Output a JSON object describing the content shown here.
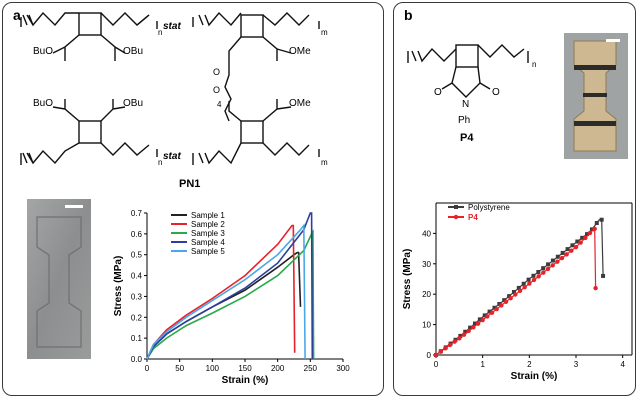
{
  "panels": {
    "a": {
      "letter": "a",
      "polymer_label": "PN1"
    },
    "b": {
      "letter": "b",
      "polymer_label": "P4"
    }
  },
  "chem": {
    "stat": "stat",
    "n": "n",
    "m": "m",
    "four": "4",
    "BuO": "BuO",
    "OBu": "OBu",
    "OMe": "OMe",
    "O": "O",
    "N": "N",
    "Ph": "Ph"
  },
  "colors": {
    "sample1": "#222222",
    "sample2": "#e8222a",
    "sample3": "#2aa84a",
    "sample4": "#2c3e9e",
    "sample5": "#4aa8e8",
    "sample4_mix": "#8a4fb0",
    "polystyrene": "#3c3c3c",
    "p4": "#e8222a"
  },
  "chart_data": [
    {
      "type": "line",
      "xlabel": "Strain (%)",
      "ylabel": "Stress (MPa)",
      "xlim": [
        0,
        300
      ],
      "ylim": [
        0,
        0.7
      ],
      "xticks": [
        0,
        50,
        100,
        150,
        200,
        250,
        300
      ],
      "yticks": [
        0.0,
        0.1,
        0.2,
        0.3,
        0.4,
        0.5,
        0.6,
        0.7
      ],
      "ytick_labels": [
        "0.0",
        "0.1",
        "0.2",
        "0.3",
        "0.4",
        "0.5",
        "0.6",
        "0.7"
      ],
      "legend": "top-left",
      "series": [
        {
          "name": "Sample 1",
          "x": [
            0,
            10,
            30,
            60,
            100,
            150,
            200,
            225,
            230,
            232,
            235
          ],
          "y": [
            0,
            0.06,
            0.12,
            0.18,
            0.25,
            0.33,
            0.44,
            0.5,
            0.51,
            0.51,
            0.25
          ]
        },
        {
          "name": "Sample 2",
          "x": [
            0,
            10,
            30,
            60,
            100,
            150,
            200,
            222,
            224,
            226
          ],
          "y": [
            0,
            0.07,
            0.14,
            0.21,
            0.29,
            0.4,
            0.55,
            0.64,
            0.64,
            0.03
          ]
        },
        {
          "name": "Sample 3",
          "x": [
            0,
            10,
            30,
            60,
            100,
            150,
            200,
            240,
            252,
            254,
            255
          ],
          "y": [
            0,
            0.05,
            0.1,
            0.16,
            0.22,
            0.3,
            0.4,
            0.52,
            0.6,
            0.61,
            0.0
          ]
        },
        {
          "name": "Sample 4",
          "x": [
            0,
            10,
            30,
            60,
            100,
            150,
            200,
            240,
            250,
            252,
            253
          ],
          "y": [
            0,
            0.06,
            0.12,
            0.18,
            0.25,
            0.34,
            0.46,
            0.62,
            0.7,
            0.7,
            0.0
          ]
        },
        {
          "name": "Sample 5",
          "x": [
            0,
            10,
            30,
            60,
            100,
            150,
            200,
            235,
            240,
            242
          ],
          "y": [
            0,
            0.07,
            0.13,
            0.2,
            0.28,
            0.38,
            0.5,
            0.62,
            0.64,
            0.0
          ]
        }
      ]
    },
    {
      "type": "line",
      "xlabel": "Strain (%)",
      "ylabel": "Stress (MPa)",
      "xlim": [
        0,
        4.2
      ],
      "ylim": [
        0,
        50
      ],
      "xticks": [
        0,
        1,
        2,
        3,
        4
      ],
      "yticks": [
        0,
        10,
        20,
        30,
        40
      ],
      "legend": "top-left",
      "series": [
        {
          "name": "Polystyrene",
          "x": [
            0,
            0.5,
            1.0,
            1.5,
            2.0,
            2.5,
            3.0,
            3.3,
            3.45,
            3.5,
            3.55,
            3.58
          ],
          "y": [
            0,
            6,
            12.5,
            18.5,
            25,
            31,
            37,
            40.5,
            43.5,
            44.5,
            44.5,
            26
          ]
        },
        {
          "name": "P4",
          "x": [
            0,
            0.5,
            1.0,
            1.5,
            2.0,
            2.5,
            3.0,
            3.2,
            3.35,
            3.4,
            3.42
          ],
          "y": [
            0,
            5.5,
            11.5,
            17.5,
            23.5,
            29.5,
            35.5,
            38.5,
            41,
            41.5,
            22
          ]
        }
      ]
    }
  ]
}
